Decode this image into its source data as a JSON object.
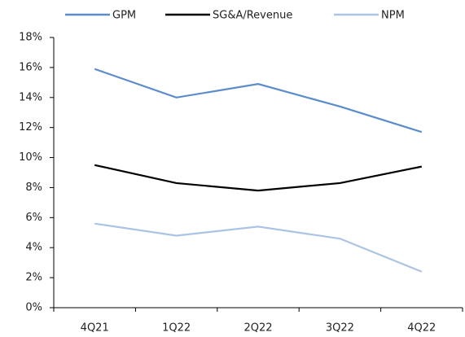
{
  "chart_data": {
    "type": "line",
    "categories": [
      "4Q21",
      "1Q22",
      "2Q22",
      "3Q22",
      "4Q22"
    ],
    "series": [
      {
        "name": "GPM",
        "color": "#5b8ccc",
        "values": [
          15.9,
          14.0,
          14.9,
          13.4,
          11.7
        ]
      },
      {
        "name": "SG&A/Revenue",
        "color": "#000000",
        "values": [
          9.5,
          8.3,
          7.8,
          8.3,
          9.4
        ]
      },
      {
        "name": "NPM",
        "color": "#abc3e4",
        "values": [
          5.6,
          4.8,
          5.4,
          4.6,
          2.4
        ]
      }
    ],
    "ylim": [
      0,
      18
    ],
    "yticks": [
      {
        "value": 0,
        "label": "0%"
      },
      {
        "value": 2,
        "label": "2%"
      },
      {
        "value": 4,
        "label": "4%"
      },
      {
        "value": 6,
        "label": "6%"
      },
      {
        "value": 8,
        "label": "8%"
      },
      {
        "value": 10,
        "label": "10%"
      },
      {
        "value": 12,
        "label": "12%"
      },
      {
        "value": 14,
        "label": "14%"
      },
      {
        "value": 16,
        "label": "16%"
      },
      {
        "value": 18,
        "label": "18%"
      }
    ],
    "grid": false,
    "legend": "top"
  }
}
